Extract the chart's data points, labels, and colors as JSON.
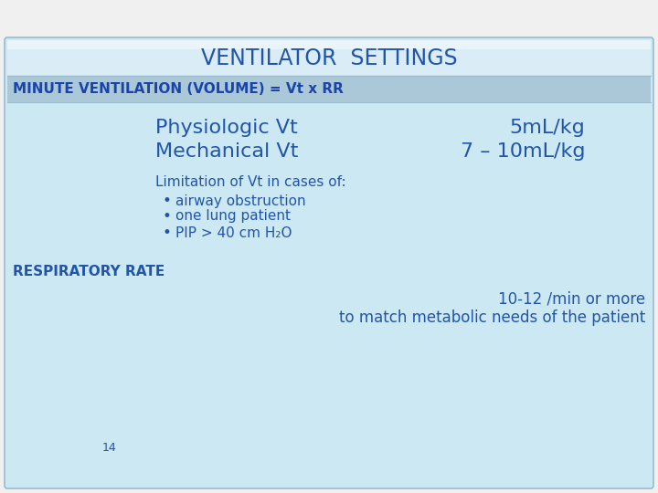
{
  "title": "VENTILATOR  SETTINGS",
  "title_color": "#2255aa",
  "title_bg_top": "#cce0ec",
  "title_bg_bottom": "#e8f4f8",
  "title_fontsize": 17,
  "subtitle": "MINUTE VENTILATION (VOLUME) = Vt x RR",
  "subtitle_color": "#1a44aa",
  "subtitle_bg_color": "#a8c8d8",
  "subtitle_fontsize": 11,
  "main_bg_top": "#b8d8e8",
  "main_bg_bottom": "#ddeef6",
  "body_color": "#2255aa",
  "line1_left": "Physiologic Vt",
  "line1_right": "5mL/kg",
  "line2_left": "Mechanical Vt",
  "line2_right": "7 – 10mL/kg",
  "body_large_fontsize": 16,
  "limitation_header": "Limitation of Vt in cases of:",
  "bullets": [
    "airway obstruction",
    "one lung patient",
    "PIP > 40 cm H₂O"
  ],
  "limitation_fontsize": 11,
  "section2_header": "RESPIRATORY RATE",
  "section2_line1": "10-12 /min or more",
  "section2_line2": "to match metabolic needs of the patient",
  "section2_header_fontsize": 11,
  "section2_fontsize": 12,
  "page_number": "14",
  "page_number_fontsize": 9,
  "outer_bg": "#f0f0f0",
  "border_color": "#99bbcc"
}
